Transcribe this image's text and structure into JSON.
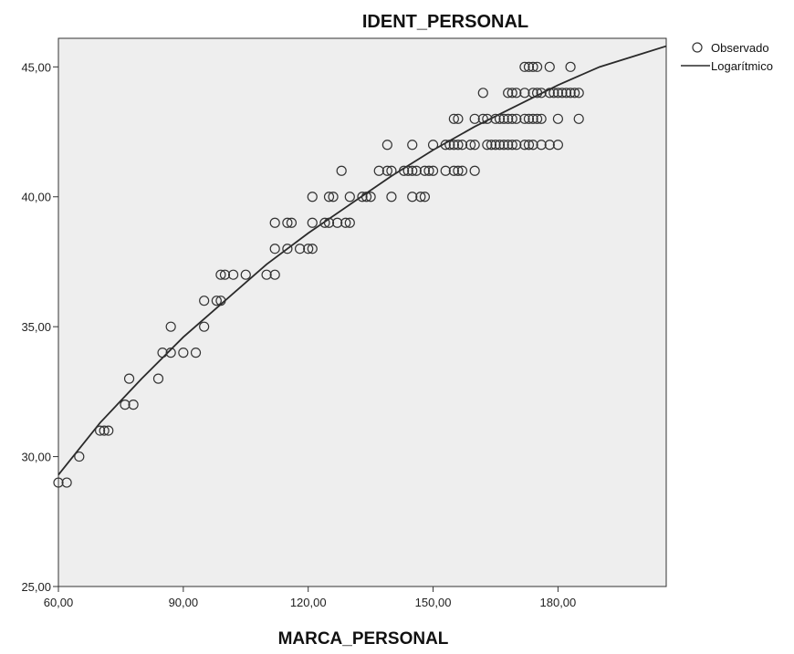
{
  "chart_data": {
    "type": "scatter",
    "title": "IDENT_PERSONAL",
    "xlabel": "MARCA_PERSONAL",
    "ylabel": "",
    "xlim": [
      60,
      206
    ],
    "ylim": [
      25,
      46.1
    ],
    "grid": false,
    "legend_position": "right",
    "xticks": [
      60,
      90,
      120,
      150,
      180
    ],
    "xtick_labels": [
      "60,00",
      "90,00",
      "120,00",
      "150,00",
      "180,00"
    ],
    "yticks": [
      25,
      30,
      35,
      40,
      45
    ],
    "ytick_labels": [
      "25,00",
      "30,00",
      "35,00",
      "40,00",
      "45,00"
    ],
    "plot_background": "#eeeeee",
    "series": [
      {
        "name": "Observado",
        "kind": "points",
        "color": "#333333",
        "points": [
          [
            60,
            29
          ],
          [
            62,
            29
          ],
          [
            65,
            30
          ],
          [
            70,
            31
          ],
          [
            71,
            31
          ],
          [
            72,
            31
          ],
          [
            76,
            32
          ],
          [
            78,
            32
          ],
          [
            77,
            33
          ],
          [
            84,
            33
          ],
          [
            85,
            34
          ],
          [
            87,
            34
          ],
          [
            90,
            34
          ],
          [
            93,
            34
          ],
          [
            87,
            35
          ],
          [
            95,
            35
          ],
          [
            95,
            36
          ],
          [
            98,
            36
          ],
          [
            99,
            36
          ],
          [
            99,
            37
          ],
          [
            100,
            37
          ],
          [
            102,
            37
          ],
          [
            105,
            37
          ],
          [
            110,
            37
          ],
          [
            112,
            37
          ],
          [
            112,
            38
          ],
          [
            115,
            38
          ],
          [
            118,
            38
          ],
          [
            120,
            38
          ],
          [
            121,
            38
          ],
          [
            112,
            39
          ],
          [
            115,
            39
          ],
          [
            116,
            39
          ],
          [
            121,
            39
          ],
          [
            124,
            39
          ],
          [
            125,
            39
          ],
          [
            127,
            39
          ],
          [
            129,
            39
          ],
          [
            130,
            39
          ],
          [
            121,
            40
          ],
          [
            125,
            40
          ],
          [
            126,
            40
          ],
          [
            130,
            40
          ],
          [
            133,
            40
          ],
          [
            134,
            40
          ],
          [
            135,
            40
          ],
          [
            140,
            40
          ],
          [
            145,
            40
          ],
          [
            147,
            40
          ],
          [
            148,
            40
          ],
          [
            128,
            41
          ],
          [
            137,
            41
          ],
          [
            139,
            41
          ],
          [
            140,
            41
          ],
          [
            143,
            41
          ],
          [
            144,
            41
          ],
          [
            145,
            41
          ],
          [
            146,
            41
          ],
          [
            148,
            41
          ],
          [
            149,
            41
          ],
          [
            150,
            41
          ],
          [
            153,
            41
          ],
          [
            155,
            41
          ],
          [
            156,
            41
          ],
          [
            157,
            41
          ],
          [
            160,
            41
          ],
          [
            139,
            42
          ],
          [
            145,
            42
          ],
          [
            150,
            42
          ],
          [
            153,
            42
          ],
          [
            154,
            42
          ],
          [
            155,
            42
          ],
          [
            156,
            42
          ],
          [
            157,
            42
          ],
          [
            159,
            42
          ],
          [
            160,
            42
          ],
          [
            163,
            42
          ],
          [
            164,
            42
          ],
          [
            165,
            42
          ],
          [
            166,
            42
          ],
          [
            167,
            42
          ],
          [
            168,
            42
          ],
          [
            169,
            42
          ],
          [
            170,
            42
          ],
          [
            172,
            42
          ],
          [
            173,
            42
          ],
          [
            174,
            42
          ],
          [
            176,
            42
          ],
          [
            178,
            42
          ],
          [
            180,
            42
          ],
          [
            155,
            43
          ],
          [
            156,
            43
          ],
          [
            160,
            43
          ],
          [
            162,
            43
          ],
          [
            163,
            43
          ],
          [
            165,
            43
          ],
          [
            166,
            43
          ],
          [
            167,
            43
          ],
          [
            168,
            43
          ],
          [
            169,
            43
          ],
          [
            170,
            43
          ],
          [
            172,
            43
          ],
          [
            173,
            43
          ],
          [
            174,
            43
          ],
          [
            175,
            43
          ],
          [
            176,
            43
          ],
          [
            180,
            43
          ],
          [
            185,
            43
          ],
          [
            162,
            44
          ],
          [
            168,
            44
          ],
          [
            169,
            44
          ],
          [
            170,
            44
          ],
          [
            172,
            44
          ],
          [
            174,
            44
          ],
          [
            175,
            44
          ],
          [
            176,
            44
          ],
          [
            178,
            44
          ],
          [
            179,
            44
          ],
          [
            180,
            44
          ],
          [
            181,
            44
          ],
          [
            182,
            44
          ],
          [
            183,
            44
          ],
          [
            184,
            44
          ],
          [
            185,
            44
          ],
          [
            172,
            45
          ],
          [
            173,
            45
          ],
          [
            174,
            45
          ],
          [
            175,
            45
          ],
          [
            178,
            45
          ],
          [
            183,
            45
          ]
        ]
      },
      {
        "name": "Logarítmico",
        "kind": "line",
        "color": "#2a2a2a",
        "points": [
          [
            60,
            29.3
          ],
          [
            70,
            31.3
          ],
          [
            80,
            33.0
          ],
          [
            90,
            34.6
          ],
          [
            100,
            36.0
          ],
          [
            110,
            37.4
          ],
          [
            120,
            38.6
          ],
          [
            130,
            39.7
          ],
          [
            140,
            40.8
          ],
          [
            150,
            41.8
          ],
          [
            160,
            42.7
          ],
          [
            170,
            43.5
          ],
          [
            180,
            44.3
          ],
          [
            190,
            45.0
          ],
          [
            200,
            45.5
          ],
          [
            206,
            45.8
          ]
        ]
      }
    ]
  }
}
